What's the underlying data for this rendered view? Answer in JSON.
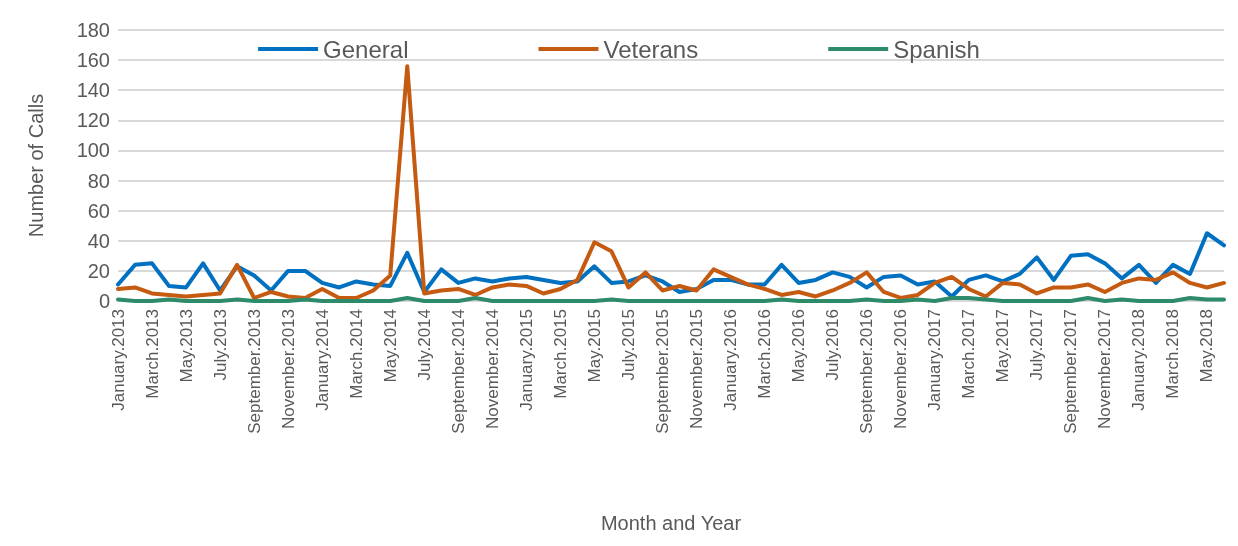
{
  "chart_data": {
    "type": "line",
    "xlabel": "Month and Year",
    "ylabel": "Number of Calls",
    "categories": [
      "January.2013",
      null,
      "March.2013",
      null,
      "May.2013",
      null,
      "July.2013",
      null,
      "September.2013",
      null,
      "November.2013",
      null,
      "January.2014",
      null,
      "March.2014",
      null,
      "May.2014",
      null,
      "July.2014",
      null,
      "September.2014",
      null,
      "November.2014",
      null,
      "January.2015",
      null,
      "March.2015",
      null,
      "May.2015",
      null,
      "July.2015",
      null,
      "September.2015",
      null,
      "November.2015",
      null,
      "January.2016",
      null,
      "March.2016",
      null,
      "May.2016",
      null,
      "July.2016",
      null,
      "September.2016",
      null,
      "November.2016",
      null,
      "January.2017",
      null,
      "March.2017",
      null,
      "May.2017",
      null,
      "July.2017",
      null,
      "September.2017",
      null,
      "November.2017",
      null,
      "January.2018",
      null,
      "March.2018",
      null,
      "May.2018",
      null
    ],
    "series": [
      {
        "name": "General",
        "color": "#0070c0",
        "values": [
          11,
          24,
          25,
          10,
          9,
          25,
          7,
          23,
          17,
          7,
          20,
          20,
          12,
          9,
          13,
          11,
          10,
          32,
          6,
          21,
          12,
          15,
          13,
          15,
          16,
          14,
          12,
          13,
          23,
          12,
          13,
          17,
          13,
          6,
          8,
          14,
          14,
          11,
          11,
          24,
          12,
          14,
          19,
          16,
          9,
          16,
          17,
          11,
          13,
          3,
          14,
          17,
          13,
          18,
          29,
          14,
          30,
          31,
          25,
          15,
          24,
          12,
          24,
          18,
          45,
          37
        ]
      },
      {
        "name": "Veterans",
        "color": "#c55a11",
        "values": [
          8,
          9,
          5,
          4,
          3,
          4,
          5,
          24,
          2,
          6,
          3,
          2,
          8,
          2,
          2,
          7,
          17,
          156,
          5,
          7,
          8,
          4,
          9,
          11,
          10,
          5,
          8,
          14,
          39,
          33,
          9,
          19,
          7,
          10,
          7,
          21,
          16,
          11,
          8,
          4,
          6,
          3,
          7,
          12,
          19,
          6,
          2,
          4,
          12,
          16,
          8,
          3,
          12,
          11,
          5,
          9,
          9,
          11,
          6,
          12,
          15,
          14,
          19,
          12,
          9,
          12
        ]
      },
      {
        "name": "Spanish",
        "color": "#2e8b6a",
        "values": [
          1,
          0,
          0,
          1,
          0,
          0,
          0,
          1,
          0,
          0,
          0,
          1,
          0,
          0,
          0,
          0,
          0,
          2,
          0,
          0,
          0,
          2,
          0,
          0,
          0,
          0,
          0,
          0,
          0,
          1,
          0,
          0,
          0,
          0,
          0,
          0,
          0,
          0,
          0,
          1,
          0,
          0,
          0,
          0,
          1,
          0,
          0,
          1,
          0,
          2,
          2,
          1,
          0,
          0,
          0,
          0,
          0,
          2,
          0,
          1,
          0,
          0,
          0,
          2,
          1,
          1
        ]
      }
    ],
    "ylim": [
      0,
      180
    ],
    "yticks": [
      0,
      20,
      40,
      60,
      80,
      100,
      120,
      140,
      160,
      180
    ],
    "grid": "y",
    "legend": "top",
    "marker": "none",
    "line_style": "solid"
  }
}
